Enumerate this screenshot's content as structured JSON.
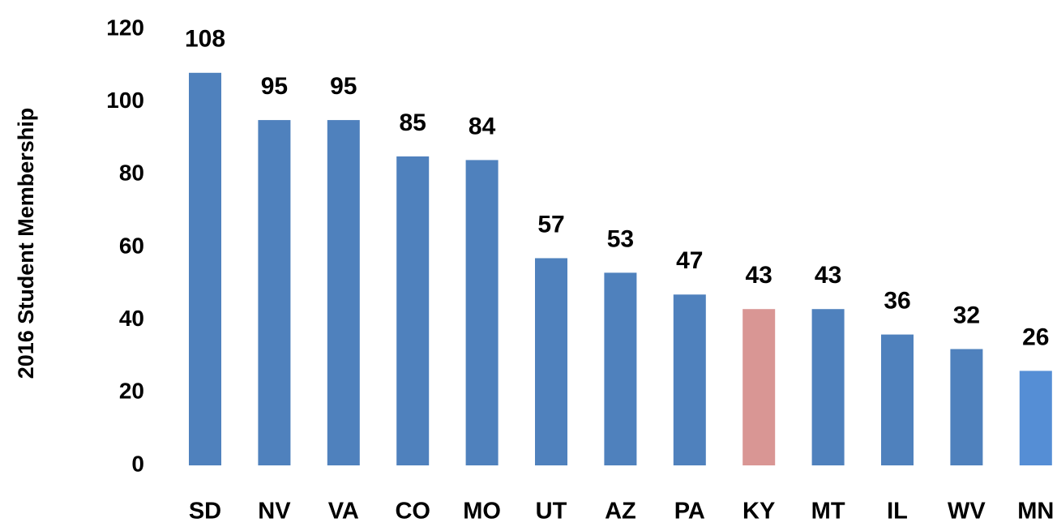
{
  "chart_data": {
    "type": "bar",
    "y_label": "2016 Student Membership",
    "categories": [
      "SD",
      "NV",
      "VA",
      "CO",
      "MO",
      "UT",
      "AZ",
      "PA",
      "KY",
      "MT",
      "IL",
      "WV",
      "MN"
    ],
    "values": [
      108,
      95,
      95,
      85,
      84,
      57,
      53,
      47,
      43,
      43,
      36,
      32,
      26
    ],
    "colors": [
      "#4f81bd",
      "#4f81bd",
      "#4f81bd",
      "#4f81bd",
      "#4f81bd",
      "#4f81bd",
      "#4f81bd",
      "#4f81bd",
      "#d99694",
      "#4f81bd",
      "#4f81bd",
      "#4f81bd",
      "#558ed5"
    ],
    "ylim": [
      0,
      120
    ],
    "yticks": [
      0,
      20,
      40,
      60,
      80,
      100,
      120
    ],
    "grid": false
  }
}
